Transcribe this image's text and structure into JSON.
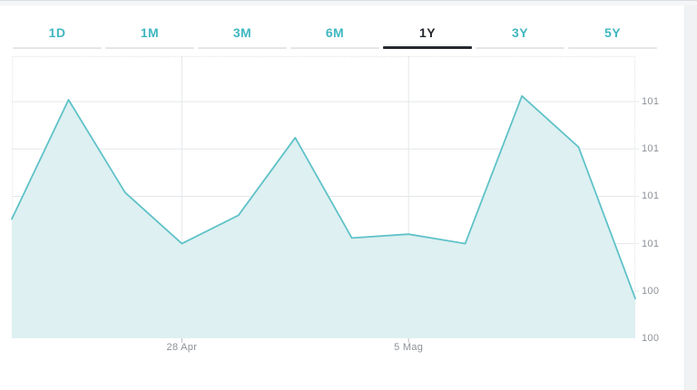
{
  "tabs": {
    "items": [
      {
        "label": "1D",
        "active": false
      },
      {
        "label": "1M",
        "active": false
      },
      {
        "label": "3M",
        "active": false
      },
      {
        "label": "6M",
        "active": false
      },
      {
        "label": "1Y",
        "active": true
      },
      {
        "label": "3Y",
        "active": false
      },
      {
        "label": "5Y",
        "active": false
      }
    ]
  },
  "chart_data": {
    "type": "area",
    "title": "",
    "xlabel": "",
    "ylabel": "",
    "grid": true,
    "legend": false,
    "series": [
      {
        "name": "price",
        "values": [
          100.63,
          101.26,
          100.77,
          100.5,
          100.65,
          101.06,
          100.53,
          100.55,
          100.5,
          101.28,
          101.01,
          100.21
        ]
      }
    ],
    "ylim": [
      100.0,
      101.49
    ],
    "y_ticks": [
      {
        "value": 101.25,
        "label": "101"
      },
      {
        "value": 101.0,
        "label": "101"
      },
      {
        "value": 100.75,
        "label": "101"
      },
      {
        "value": 100.5,
        "label": "101"
      },
      {
        "value": 100.25,
        "label": "100"
      },
      {
        "value": 100.0,
        "label": "100"
      }
    ],
    "x_ticks": [
      {
        "index": 3,
        "label": "28 Apr"
      },
      {
        "index": 7,
        "label": "5 Mag"
      }
    ]
  },
  "colors": {
    "accent": "#3fb7c1",
    "line": "#5fc2c8",
    "fill": "#def0f1",
    "tab_active": "#23282d",
    "grid": "#e4e7e9",
    "axis_text": "#8d9298",
    "strip_bg": "#f4f5f7",
    "strip_border": "#d9dce0",
    "gutter_bg": "#f1f2f4",
    "tick_mark": "#b9bec4"
  }
}
